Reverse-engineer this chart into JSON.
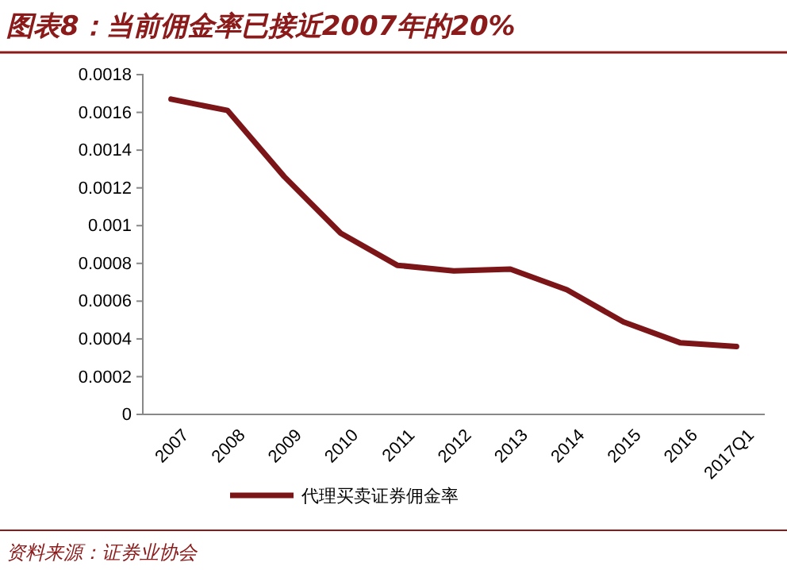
{
  "chart_data": {
    "type": "line",
    "title": "图表8：当前佣金率已接近2007年的20%",
    "categories": [
      "2007",
      "2008",
      "2009",
      "2010",
      "2011",
      "2012",
      "2013",
      "2014",
      "2015",
      "2016",
      "2017Q1"
    ],
    "series": [
      {
        "name": "代理买卖证券佣金率",
        "color": "#7b1518",
        "values": [
          0.00167,
          0.00161,
          0.00126,
          0.00096,
          0.00079,
          0.00076,
          0.00077,
          0.00066,
          0.00049,
          0.00038,
          0.00036
        ]
      }
    ],
    "ylim": [
      0,
      0.0018
    ],
    "yticks": [
      0,
      0.0002,
      0.0004,
      0.0006,
      0.0008,
      0.001,
      0.0012,
      0.0014,
      0.0016,
      0.0018
    ],
    "grid": false,
    "legend": "bottom",
    "marker": "none",
    "line_style": "solid",
    "annotations": [
      "资料来源：证券业协会"
    ]
  }
}
